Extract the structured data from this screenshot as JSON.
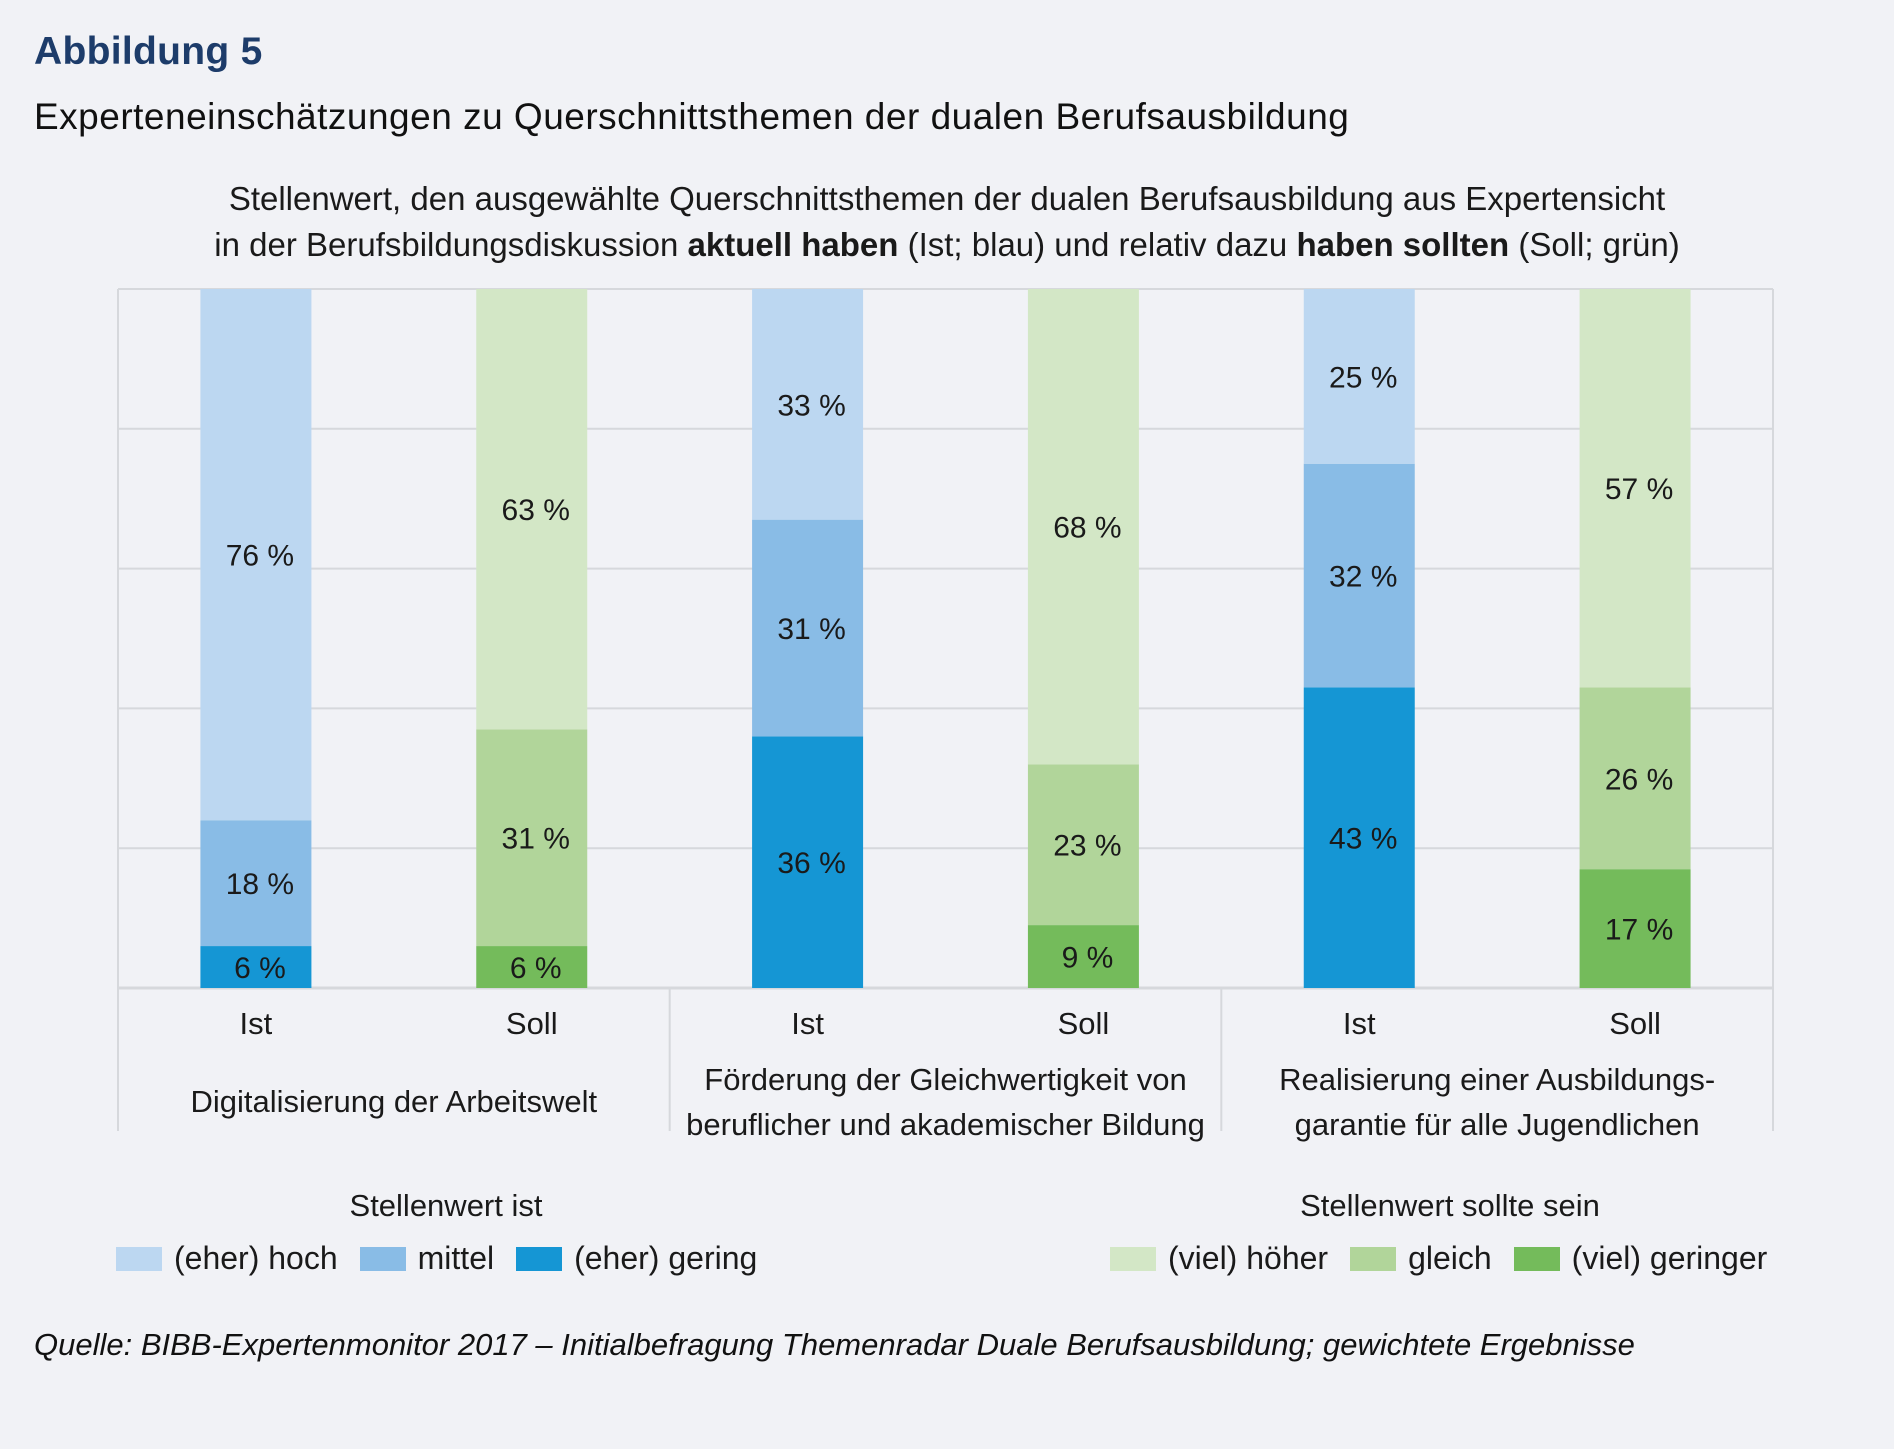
{
  "figure": {
    "label": "Abbildung 5",
    "title": "Experteneinschätzungen zu Querschnittsthemen der dualen Berufsausbildung",
    "subtitle_line1": "Stellenwert, den ausgewählte Querschnittsthemen der dualen Berufsausbildung aus Expertensicht",
    "subtitle_line2_parts": {
      "a": "in der Berufsbildungsdiskussion ",
      "b_bold": "aktuell haben",
      "c": " (Ist; blau) und relativ dazu ",
      "d_bold": "haben sollten",
      "e": " (Soll; grün)"
    },
    "source": "Quelle: BIBB-Expertenmonitor 2017 – Initialbefragung Themenradar Duale Berufsausbildung; gewichtete Ergebnisse"
  },
  "legend": {
    "ist": {
      "heading": "Stellenwert ist",
      "items": [
        {
          "label": "(eher) hoch",
          "color": "#bcd7f1"
        },
        {
          "label": "mittel",
          "color": "#89bce6"
        },
        {
          "label": "(eher) gering",
          "color": "#1596d4"
        }
      ]
    },
    "soll": {
      "heading": "Stellenwert sollte sein",
      "items": [
        {
          "label": "(viel) höher",
          "color": "#d3e7c6"
        },
        {
          "label": "gleich",
          "color": "#b1d59a"
        },
        {
          "label": "(viel) geringer",
          "color": "#74bb5b"
        }
      ]
    }
  },
  "chart_data": {
    "type": "bar",
    "stacked": true,
    "percent_stacked": true,
    "title": "Stellenwert, den ausgewählte Querschnittsthemen der dualen Berufsausbildung aus Expertensicht in der Berufsbildungsdiskussion aktuell haben (Ist; blau) und relativ dazu haben sollten (Soll; grün)",
    "xlabel": "",
    "ylabel": "",
    "ylim": [
      0,
      100
    ],
    "grid": true,
    "gridlines_at": [
      20,
      40,
      60,
      80,
      100
    ],
    "legend_position": "bottom",
    "groups": [
      {
        "label_lines": [
          "Digitalisierung der Arbeitswelt"
        ]
      },
      {
        "label_lines": [
          "Förderung der Gleichwertigkeit von",
          "beruflicher und akademischer Bildung"
        ]
      },
      {
        "label_lines": [
          "Realisierung einer Ausbildungs-",
          "garantie für alle Jugendlichen"
        ]
      }
    ],
    "bars": [
      {
        "group": 0,
        "category": "Ist",
        "segments": [
          {
            "series": "(eher) gering",
            "value": 6,
            "label": "6 %",
            "color": "#1596d4"
          },
          {
            "series": "mittel",
            "value": 18,
            "label": "18 %",
            "color": "#89bce6"
          },
          {
            "series": "(eher) hoch",
            "value": 76,
            "label": "76 %",
            "color": "#bcd7f1"
          }
        ]
      },
      {
        "group": 0,
        "category": "Soll",
        "segments": [
          {
            "series": "(viel) geringer",
            "value": 6,
            "label": "6 %",
            "color": "#74bb5b"
          },
          {
            "series": "gleich",
            "value": 31,
            "label": "31 %",
            "color": "#b1d59a"
          },
          {
            "series": "(viel) höher",
            "value": 63,
            "label": "63 %",
            "color": "#d3e7c6"
          }
        ]
      },
      {
        "group": 1,
        "category": "Ist",
        "segments": [
          {
            "series": "(eher) gering",
            "value": 36,
            "label": "36 %",
            "color": "#1596d4"
          },
          {
            "series": "mittel",
            "value": 31,
            "label": "31 %",
            "color": "#89bce6"
          },
          {
            "series": "(eher) hoch",
            "value": 33,
            "label": "33 %",
            "color": "#bcd7f1"
          }
        ]
      },
      {
        "group": 1,
        "category": "Soll",
        "segments": [
          {
            "series": "(viel) geringer",
            "value": 9,
            "label": "9 %",
            "color": "#74bb5b"
          },
          {
            "series": "gleich",
            "value": 23,
            "label": "23 %",
            "color": "#b1d59a"
          },
          {
            "series": "(viel) höher",
            "value": 68,
            "label": "68 %",
            "color": "#d3e7c6"
          }
        ]
      },
      {
        "group": 2,
        "category": "Ist",
        "segments": [
          {
            "series": "(eher) gering",
            "value": 43,
            "label": "43 %",
            "color": "#1596d4"
          },
          {
            "series": "mittel",
            "value": 32,
            "label": "32 %",
            "color": "#89bce6"
          },
          {
            "series": "(eher) hoch",
            "value": 25,
            "label": "25 %",
            "color": "#bcd7f1"
          }
        ]
      },
      {
        "group": 2,
        "category": "Soll",
        "segments": [
          {
            "series": "(viel) geringer",
            "value": 17,
            "label": "17 %",
            "color": "#74bb5b"
          },
          {
            "series": "gleich",
            "value": 26,
            "label": "26 %",
            "color": "#b1d59a"
          },
          {
            "series": "(viel) höher",
            "value": 57,
            "label": "57 %",
            "color": "#d3e7c6"
          }
        ]
      }
    ]
  }
}
